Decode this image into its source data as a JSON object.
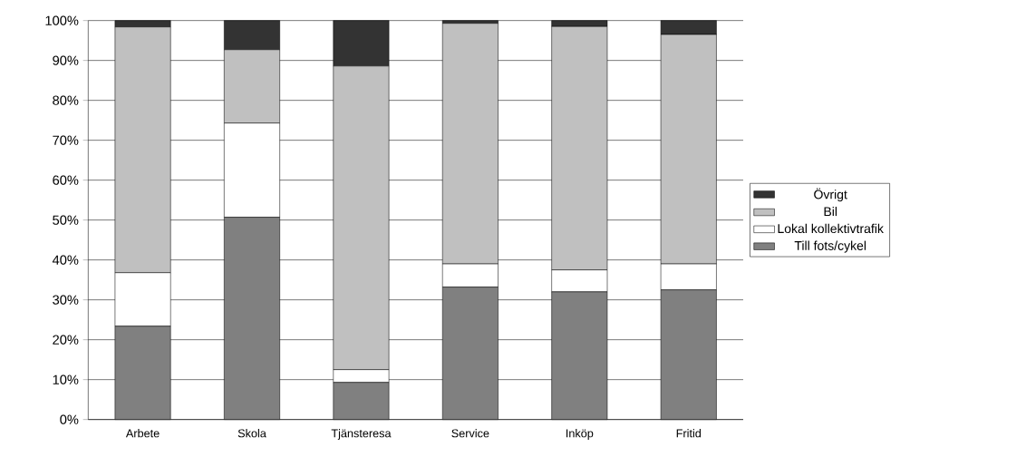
{
  "chart_data": {
    "type": "bar",
    "stacked": true,
    "categories": [
      "Arbete",
      "Skola",
      "Tjänsteresa",
      "Service",
      "Inköp",
      "Fritid"
    ],
    "series": [
      {
        "name": "Till fots/cykel",
        "color": "#808080",
        "values": [
          23.4,
          50.7,
          9.3,
          33.2,
          32,
          32.5
        ]
      },
      {
        "name": "Lokal kollektivtrafik",
        "color": "#ffffff",
        "values": [
          13.4,
          23.6,
          3.2,
          5.8,
          5.5,
          6.5
        ]
      },
      {
        "name": "Bil",
        "color": "#c0c0c0",
        "values": [
          61.6,
          18.4,
          76.1,
          60.3,
          61,
          57.5
        ]
      },
      {
        "name": "Övrigt",
        "color": "#333333",
        "values": [
          1.6,
          7.3,
          11.4,
          0.7,
          1.5,
          3.5
        ]
      }
    ],
    "ylim": [
      0,
      100
    ],
    "yticks": [
      {
        "value": 0,
        "label": "0%"
      },
      {
        "value": 10,
        "label": "10%"
      },
      {
        "value": 20,
        "label": "20%"
      },
      {
        "value": 30,
        "label": "30%"
      },
      {
        "value": 40,
        "label": "40%"
      },
      {
        "value": 50,
        "label": "50%"
      },
      {
        "value": 60,
        "label": "60%"
      },
      {
        "value": 70,
        "label": "70%"
      },
      {
        "value": 80,
        "label": "80%"
      },
      {
        "value": 90,
        "label": "90%"
      },
      {
        "value": 100,
        "label": "100%"
      }
    ],
    "grid": "y",
    "legend": "right"
  }
}
